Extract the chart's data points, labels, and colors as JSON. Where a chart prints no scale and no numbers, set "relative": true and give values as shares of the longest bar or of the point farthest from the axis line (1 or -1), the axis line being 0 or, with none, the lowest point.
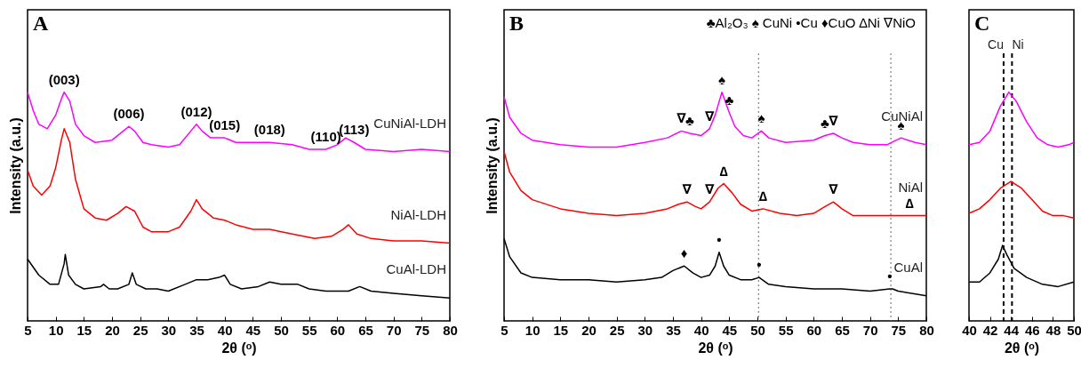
{
  "chart_data": [
    {
      "type": "line",
      "relative": true,
      "xlabel": "2θ (ᵒ)",
      "ylabel": "Intensity (a.u.)",
      "xlim": [
        5,
        80
      ],
      "xticks": [
        5,
        10,
        15,
        20,
        25,
        30,
        35,
        40,
        45,
        50,
        55,
        60,
        65,
        70,
        75,
        80
      ],
      "grid": false,
      "line_style": "solid",
      "annotations": [
        "A",
        {
          "text": "(003)",
          "x": 11.5,
          "y": 1.0
        },
        {
          "text": "(006)",
          "x": 23,
          "y": 0.85
        },
        {
          "text": "(012)",
          "x": 35,
          "y": 0.86
        },
        {
          "text": "(015)",
          "x": 40,
          "y": 0.8
        },
        {
          "text": "(018)",
          "x": 48,
          "y": 0.78
        },
        {
          "text": "(110)",
          "x": 58,
          "y": 0.75
        },
        {
          "text": "(113)",
          "x": 63,
          "y": 0.78
        }
      ],
      "series": [
        {
          "name": "CuNiAl-LDH",
          "color": "#ff00ff",
          "x": [
            5,
            6,
            7,
            8.5,
            10,
            11,
            11.5,
            12.5,
            13.5,
            15,
            17,
            20,
            22,
            23,
            24,
            25.5,
            27,
            30,
            32,
            34,
            35,
            36,
            37.5,
            40,
            42,
            45,
            48,
            52,
            55,
            58,
            60,
            61.5,
            63,
            65,
            70,
            75,
            80
          ],
          "values": [
            1.0,
            0.92,
            0.86,
            0.84,
            0.9,
            0.97,
            1.0,
            0.96,
            0.86,
            0.81,
            0.78,
            0.79,
            0.83,
            0.85,
            0.83,
            0.78,
            0.77,
            0.76,
            0.77,
            0.83,
            0.86,
            0.83,
            0.8,
            0.8,
            0.78,
            0.78,
            0.78,
            0.77,
            0.75,
            0.75,
            0.77,
            0.8,
            0.78,
            0.75,
            0.74,
            0.75,
            0.74
          ]
        },
        {
          "name": "NiAl-LDH",
          "color": "#ff0000",
          "x": [
            5,
            6,
            7.5,
            9,
            10,
            11,
            11.5,
            12.5,
            13.5,
            15,
            17,
            19,
            21,
            22.5,
            24,
            25.5,
            27,
            30,
            32,
            34,
            35,
            36,
            38,
            40,
            42,
            45,
            48,
            52,
            56,
            59,
            61,
            62,
            63.5,
            66,
            70,
            75,
            80
          ],
          "values": [
            0.66,
            0.59,
            0.55,
            0.59,
            0.67,
            0.79,
            0.84,
            0.78,
            0.62,
            0.49,
            0.45,
            0.44,
            0.47,
            0.5,
            0.48,
            0.41,
            0.39,
            0.39,
            0.41,
            0.48,
            0.53,
            0.49,
            0.45,
            0.44,
            0.42,
            0.4,
            0.4,
            0.38,
            0.36,
            0.37,
            0.4,
            0.42,
            0.38,
            0.36,
            0.35,
            0.35,
            0.34
          ]
        },
        {
          "name": "CuAl-LDH",
          "color": "#000000",
          "x": [
            5,
            7,
            9,
            10.5,
            11.5,
            11.7,
            12.3,
            13.5,
            15,
            18,
            18.5,
            19.5,
            21,
            23,
            23.6,
            24.3,
            26,
            28,
            30,
            33,
            35,
            37,
            39,
            40,
            41,
            43,
            46,
            48,
            50,
            53,
            55,
            58,
            62,
            64,
            66,
            70,
            75,
            80
          ],
          "values": [
            0.27,
            0.2,
            0.16,
            0.16,
            0.25,
            0.29,
            0.2,
            0.16,
            0.14,
            0.15,
            0.16,
            0.14,
            0.14,
            0.16,
            0.21,
            0.16,
            0.14,
            0.14,
            0.13,
            0.16,
            0.18,
            0.18,
            0.19,
            0.2,
            0.16,
            0.14,
            0.15,
            0.17,
            0.16,
            0.16,
            0.14,
            0.13,
            0.13,
            0.15,
            0.13,
            0.12,
            0.11,
            0.1
          ]
        }
      ]
    },
    {
      "type": "line",
      "relative": true,
      "xlabel": "2θ (ᵒ)",
      "ylabel": "Intensity (a.u.)",
      "xlim": [
        5,
        80
      ],
      "xticks": [
        5,
        10,
        15,
        20,
        25,
        30,
        35,
        40,
        45,
        50,
        55,
        60,
        65,
        70,
        75,
        80
      ],
      "grid": false,
      "line_style": "solid",
      "annotations": [
        "B",
        "♣Al₂O₃ ♠ CuNi •Cu ♦CuO ∆Ni ∇NiO",
        {
          "text": "∇",
          "x": 36.5,
          "y": 0.83
        },
        {
          "text": "♣",
          "x": 38,
          "y": 0.82
        },
        {
          "text": "∇",
          "x": 41.5,
          "y": 0.84
        },
        {
          "text": "♠",
          "x": 43.7,
          "y": 1.0
        },
        {
          "text": "♣",
          "x": 45,
          "y": 0.91
        },
        {
          "text": "♠",
          "x": 50.7,
          "y": 0.83
        },
        {
          "text": "♣",
          "x": 62,
          "y": 0.81
        },
        {
          "text": "∇",
          "x": 63.5,
          "y": 0.82
        },
        {
          "text": "♠",
          "x": 75.5,
          "y": 0.8
        },
        {
          "text": "∇",
          "x": 37.5,
          "y": 0.52
        },
        {
          "text": "∇",
          "x": 41.5,
          "y": 0.52
        },
        {
          "text": "∆",
          "x": 44,
          "y": 0.6
        },
        {
          "text": "∆",
          "x": 51,
          "y": 0.49
        },
        {
          "text": "∇",
          "x": 63.5,
          "y": 0.52
        },
        {
          "text": "∆",
          "x": 77,
          "y": 0.46
        },
        {
          "text": "♦",
          "x": 37,
          "y": 0.24
        },
        {
          "text": "•",
          "x": 43.2,
          "y": 0.3
        },
        {
          "text": "•",
          "x": 50.3,
          "y": 0.19
        },
        {
          "text": "•",
          "x": 73.5,
          "y": 0.14
        }
      ],
      "ref_lines": [
        {
          "axis": "x",
          "value": 50.2,
          "color": "#666666",
          "line_style": "dotted"
        },
        {
          "axis": "x",
          "value": 73.7,
          "color": "#666666",
          "line_style": "dotted"
        }
      ],
      "series": [
        {
          "name": "CuNiAl",
          "color": "#ff00ff",
          "x": [
            5,
            6,
            8,
            10,
            15,
            20,
            25,
            30,
            34,
            36.5,
            38,
            40,
            41.5,
            42.5,
            43.7,
            45,
            46,
            47.5,
            49,
            50.7,
            52,
            55,
            60,
            62,
            63.5,
            65,
            67,
            70,
            73,
            75.5,
            78,
            80
          ],
          "values": [
            0.98,
            0.89,
            0.82,
            0.79,
            0.77,
            0.76,
            0.76,
            0.78,
            0.8,
            0.83,
            0.82,
            0.81,
            0.84,
            0.9,
            1.0,
            0.91,
            0.85,
            0.81,
            0.8,
            0.83,
            0.8,
            0.78,
            0.79,
            0.81,
            0.82,
            0.8,
            0.78,
            0.77,
            0.77,
            0.8,
            0.78,
            0.77
          ]
        },
        {
          "name": "NiAl",
          "color": "#ff0000",
          "x": [
            5,
            6,
            8,
            10,
            15,
            20,
            25,
            30,
            34,
            36,
            37.5,
            39,
            40,
            41.5,
            43,
            44,
            45.5,
            47,
            49,
            51,
            54,
            57,
            60,
            62,
            63.5,
            65,
            67,
            70,
            75,
            77,
            80
          ],
          "values": [
            0.74,
            0.65,
            0.57,
            0.53,
            0.49,
            0.47,
            0.46,
            0.47,
            0.49,
            0.51,
            0.52,
            0.5,
            0.49,
            0.52,
            0.58,
            0.6,
            0.56,
            0.51,
            0.48,
            0.49,
            0.47,
            0.46,
            0.47,
            0.5,
            0.52,
            0.49,
            0.46,
            0.46,
            0.46,
            0.46,
            0.46
          ]
        },
        {
          "name": "CuAl",
          "color": "#000000",
          "x": [
            5,
            6,
            8,
            10,
            15,
            20,
            25,
            30,
            33,
            35,
            37,
            38.5,
            40,
            41.5,
            42.5,
            43.2,
            44,
            45,
            47,
            49,
            50.3,
            52,
            55,
            60,
            65,
            70,
            73.5,
            74,
            75,
            80
          ],
          "values": [
            0.36,
            0.28,
            0.21,
            0.19,
            0.18,
            0.18,
            0.17,
            0.18,
            0.19,
            0.22,
            0.24,
            0.21,
            0.19,
            0.2,
            0.24,
            0.3,
            0.24,
            0.2,
            0.18,
            0.18,
            0.19,
            0.16,
            0.15,
            0.14,
            0.14,
            0.13,
            0.14,
            0.14,
            0.13,
            0.11
          ]
        }
      ]
    },
    {
      "type": "line",
      "relative": true,
      "xlabel": "2θ (ᵒ)",
      "xlim": [
        40,
        50
      ],
      "xticks": [
        40,
        42,
        44,
        46,
        48,
        50
      ],
      "grid": false,
      "line_style": "solid",
      "annotations": [
        "C"
      ],
      "ref_lines": [
        {
          "axis": "x",
          "value": 43.3,
          "label": "Cu",
          "color": "#000000",
          "line_style": "dashed"
        },
        {
          "axis": "x",
          "value": 44.1,
          "label": "Ni",
          "color": "#000000",
          "line_style": "dashed"
        }
      ],
      "series": [
        {
          "color": "#ff00ff",
          "x": [
            40,
            41,
            42,
            43,
            43.8,
            44.5,
            45.5,
            46.5,
            47.5,
            48.5,
            49.5,
            50
          ],
          "values": [
            0.77,
            0.78,
            0.83,
            0.94,
            1.0,
            0.96,
            0.87,
            0.8,
            0.77,
            0.76,
            0.77,
            0.78
          ]
        },
        {
          "color": "#ff0000",
          "x": [
            40,
            41,
            42,
            43,
            44,
            45,
            46,
            47,
            48,
            49,
            50
          ],
          "values": [
            0.47,
            0.49,
            0.53,
            0.58,
            0.61,
            0.58,
            0.53,
            0.48,
            0.46,
            0.46,
            0.45
          ]
        },
        {
          "color": "#000000",
          "x": [
            40,
            41,
            42,
            42.8,
            43.2,
            43.6,
            44.3,
            45.5,
            47,
            48.5,
            50
          ],
          "values": [
            0.17,
            0.17,
            0.21,
            0.27,
            0.33,
            0.29,
            0.23,
            0.19,
            0.16,
            0.15,
            0.17
          ]
        }
      ]
    }
  ]
}
